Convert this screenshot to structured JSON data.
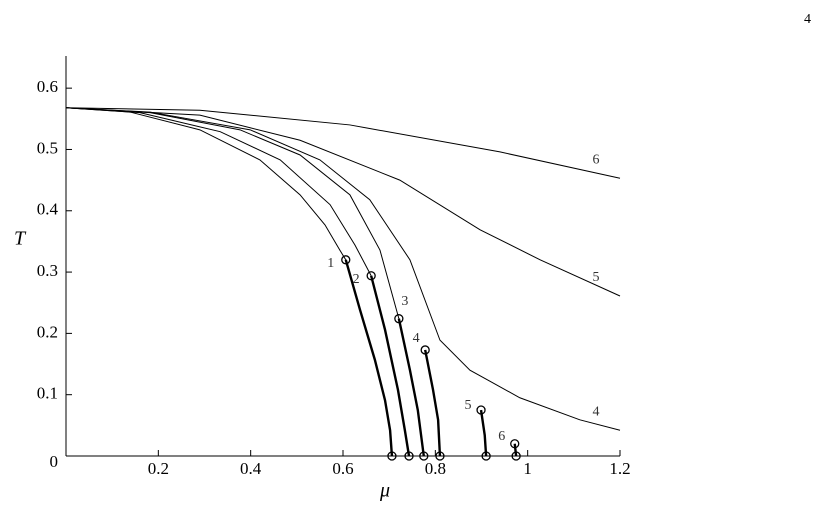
{
  "page": {
    "number": "4"
  },
  "chart_data": {
    "type": "line",
    "x_label": "μ",
    "y_label": "T",
    "xlim": [
      0,
      1.2
    ],
    "ylim": [
      0,
      0.65
    ],
    "xticks": [
      0.2,
      0.4,
      0.6,
      0.8,
      1,
      1.2
    ],
    "yticks": [
      0,
      0.1,
      0.2,
      0.3,
      0.4,
      0.5,
      0.6
    ],
    "series": [
      {
        "color": "#000",
        "line_width": 1,
        "x": [
          0,
          0.139,
          0.29,
          0.42,
          0.507,
          0.561,
          0.593,
          0.606
        ],
        "values": [
          0.568,
          0.561,
          0.532,
          0.483,
          0.426,
          0.377,
          0.336,
          0.32
        ]
      },
      {
        "color": "#000",
        "line_width": 1,
        "x": [
          0,
          0.16,
          0.334,
          0.464,
          0.572,
          0.626,
          0.661
        ],
        "values": [
          0.568,
          0.56,
          0.529,
          0.483,
          0.41,
          0.344,
          0.294
        ]
      },
      {
        "color": "#000",
        "line_width": 1,
        "x": [
          0,
          0.182,
          0.377,
          0.507,
          0.615,
          0.68,
          0.721
        ],
        "values": [
          0.568,
          0.56,
          0.532,
          0.491,
          0.426,
          0.336,
          0.224
        ]
      },
      {
        "name": "4",
        "color": "#000",
        "line_width": 1,
        "x": [
          0,
          0.182,
          0.399,
          0.55,
          0.658,
          0.745,
          0.81,
          0.875,
          0.983,
          1.113,
          1.2
        ],
        "values": [
          0.568,
          0.561,
          0.532,
          0.483,
          0.418,
          0.32,
          0.189,
          0.14,
          0.095,
          0.059,
          0.042
        ]
      },
      {
        "name": "5",
        "color": "#000",
        "line_width": 1,
        "x": [
          0,
          0.29,
          0.507,
          0.723,
          0.897,
          1.027,
          1.2
        ],
        "values": [
          0.568,
          0.556,
          0.515,
          0.45,
          0.369,
          0.32,
          0.261
        ]
      },
      {
        "name": "6",
        "color": "#000",
        "line_width": 1,
        "x": [
          0,
          0.29,
          0.615,
          0.94,
          1.2
        ],
        "values": [
          0.568,
          0.564,
          0.54,
          0.496,
          0.453
        ]
      },
      {
        "name": "1",
        "color": "#000",
        "line_width": 2.4,
        "markers": true,
        "x": [
          0.606,
          0.637,
          0.669,
          0.691,
          0.702,
          0.706
        ],
        "values": [
          0.32,
          0.238,
          0.157,
          0.091,
          0.042,
          0
        ]
      },
      {
        "name": "2",
        "color": "#000",
        "line_width": 2.4,
        "markers": true,
        "x": [
          0.661,
          0.691,
          0.719,
          0.734,
          0.743
        ],
        "values": [
          0.294,
          0.206,
          0.108,
          0.042,
          0
        ]
      },
      {
        "name": "3",
        "color": "#000",
        "line_width": 2.4,
        "markers": true,
        "x": [
          0.721,
          0.745,
          0.762,
          0.775
        ],
        "values": [
          0.224,
          0.14,
          0.075,
          0
        ]
      },
      {
        "name": "4",
        "color": "#000",
        "line_width": 2.4,
        "markers": true,
        "x": [
          0.778,
          0.795,
          0.806,
          0.81
        ],
        "values": [
          0.173,
          0.108,
          0.059,
          0
        ]
      },
      {
        "name": "5",
        "color": "#000",
        "line_width": 2.4,
        "markers": true,
        "x": [
          0.899,
          0.907,
          0.91
        ],
        "values": [
          0.075,
          0.034,
          0
        ]
      },
      {
        "name": "6",
        "color": "#000",
        "line_width": 2.4,
        "markers": true,
        "x": [
          0.972,
          0.975
        ],
        "values": [
          0.02,
          0
        ]
      }
    ]
  }
}
